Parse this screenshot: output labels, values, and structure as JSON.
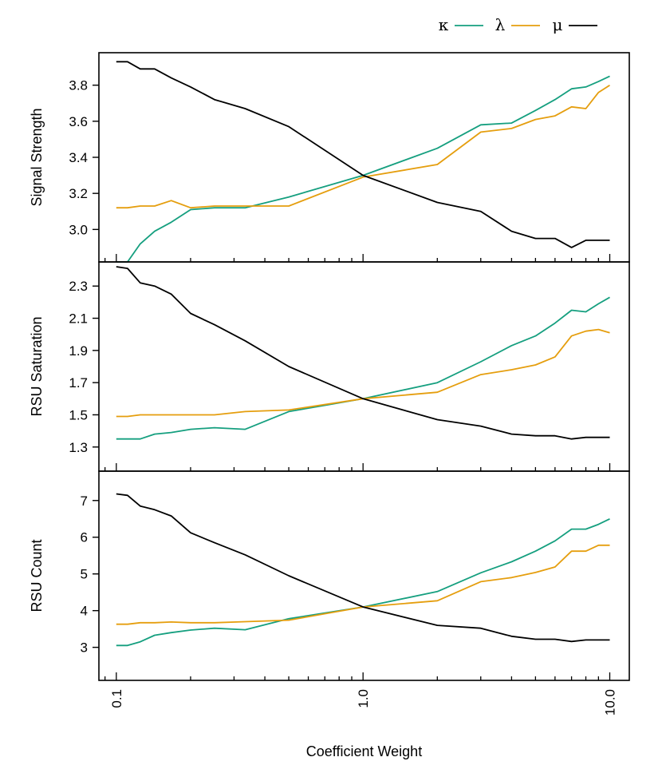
{
  "chart_data": {
    "type": "line",
    "xlabel": "Coefficient Weight",
    "xscale": "log",
    "xlim": [
      0.085,
      12
    ],
    "x_ticks": [
      "0.1",
      "1.0",
      "10.0"
    ],
    "legend": {
      "placement": "top-right",
      "entries": [
        "κ",
        "λ",
        "μ"
      ]
    },
    "colors": {
      "κ": "#159f7f",
      "λ": "#e59e0e",
      "μ": "#000000"
    },
    "x": [
      0.1,
      0.111,
      0.125,
      0.143,
      0.167,
      0.2,
      0.25,
      0.333,
      0.5,
      1.0,
      2.0,
      3.0,
      4.0,
      5.0,
      6.0,
      7.0,
      8.0,
      9.0,
      10.0
    ],
    "panels": [
      {
        "ylabel": "Signal Strength",
        "ylim": [
          2.82,
          3.98
        ],
        "y_ticks": [
          "3.0",
          "3.2",
          "3.4",
          "3.6",
          "3.8"
        ],
        "series": [
          {
            "name": "κ",
            "values": [
              2.82,
              2.82,
              2.92,
              2.99,
              3.04,
              3.11,
              3.12,
              3.12,
              3.18,
              3.3,
              3.45,
              3.58,
              3.59,
              3.66,
              3.72,
              3.78,
              3.79,
              3.82,
              3.85
            ]
          },
          {
            "name": "λ",
            "values": [
              3.12,
              3.12,
              3.13,
              3.13,
              3.16,
              3.12,
              3.13,
              3.13,
              3.13,
              3.29,
              3.36,
              3.54,
              3.56,
              3.61,
              3.63,
              3.68,
              3.67,
              3.76,
              3.8
            ]
          },
          {
            "name": "μ",
            "values": [
              3.93,
              3.93,
              3.89,
              3.89,
              3.84,
              3.79,
              3.72,
              3.67,
              3.57,
              3.3,
              3.15,
              3.1,
              2.99,
              2.95,
              2.95,
              2.9,
              2.94,
              2.94,
              2.94
            ]
          }
        ]
      },
      {
        "ylabel": "RSU Saturation",
        "ylim": [
          1.15,
          2.45
        ],
        "y_ticks": [
          "1.3",
          "1.5",
          "1.7",
          "1.9",
          "2.1",
          "2.3"
        ],
        "series": [
          {
            "name": "κ",
            "values": [
              1.35,
              1.35,
              1.35,
              1.38,
              1.39,
              1.41,
              1.42,
              1.41,
              1.52,
              1.6,
              1.7,
              1.83,
              1.93,
              1.99,
              2.07,
              2.15,
              2.14,
              2.19,
              2.23
            ]
          },
          {
            "name": "λ",
            "values": [
              1.49,
              1.49,
              1.5,
              1.5,
              1.5,
              1.5,
              1.5,
              1.52,
              1.53,
              1.6,
              1.64,
              1.75,
              1.78,
              1.81,
              1.86,
              1.99,
              2.02,
              2.03,
              2.01
            ]
          },
          {
            "name": "μ",
            "values": [
              2.42,
              2.41,
              2.32,
              2.3,
              2.25,
              2.13,
              2.06,
              1.96,
              1.8,
              1.6,
              1.47,
              1.43,
              1.38,
              1.37,
              1.37,
              1.35,
              1.36,
              1.36,
              1.36
            ]
          }
        ]
      },
      {
        "ylabel": "RSU Count",
        "ylim": [
          2.1,
          7.8
        ],
        "y_ticks": [
          "3",
          "4",
          "5",
          "6",
          "7"
        ],
        "series": [
          {
            "name": "κ",
            "values": [
              3.05,
              3.05,
              3.15,
              3.33,
              3.4,
              3.47,
              3.52,
              3.48,
              3.78,
              4.1,
              4.52,
              5.03,
              5.33,
              5.62,
              5.9,
              6.22,
              6.22,
              6.35,
              6.5
            ]
          },
          {
            "name": "λ",
            "values": [
              3.63,
              3.63,
              3.67,
              3.67,
              3.69,
              3.67,
              3.67,
              3.7,
              3.74,
              4.1,
              4.27,
              4.79,
              4.9,
              5.04,
              5.19,
              5.62,
              5.62,
              5.78,
              5.78
            ]
          },
          {
            "name": "μ",
            "values": [
              7.18,
              7.14,
              6.85,
              6.75,
              6.58,
              6.12,
              5.85,
              5.52,
              4.95,
              4.1,
              3.6,
              3.52,
              3.3,
              3.22,
              3.22,
              3.16,
              3.2,
              3.2,
              3.2
            ]
          }
        ]
      }
    ]
  }
}
